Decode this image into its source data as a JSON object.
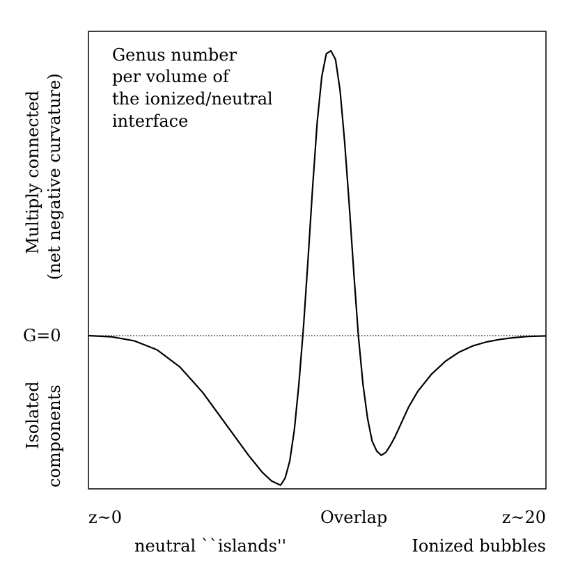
{
  "chart_data": {
    "type": "line",
    "title": "",
    "annotation": [
      "Genus number",
      "per volume of",
      "the ionized/neutral",
      "interface"
    ],
    "y_zero_label": "G=0",
    "y_upper_label": [
      "Multiply connected",
      "(net negative curvature)"
    ],
    "y_lower_label": [
      "Isolated",
      "components"
    ],
    "x_tick_labels": {
      "left": "z~0",
      "center": "Overlap",
      "right": "z~20"
    },
    "x_region_labels": {
      "left": "neutral ``islands''",
      "right": "Ionized bubbles"
    },
    "xlim": [
      0,
      1
    ],
    "ylim": [
      -0.55,
      1.07
    ],
    "zero_line": {
      "style": "dotted"
    },
    "series": [
      {
        "x": [
          0.0,
          0.05,
          0.1,
          0.15,
          0.2,
          0.25,
          0.3,
          0.35,
          0.38,
          0.4,
          0.42,
          0.43,
          0.44,
          0.45,
          0.46,
          0.47,
          0.48,
          0.49,
          0.5,
          0.51,
          0.52,
          0.53,
          0.54,
          0.55,
          0.56,
          0.57,
          0.58,
          0.59,
          0.6,
          0.61,
          0.62,
          0.63,
          0.64,
          0.65,
          0.66,
          0.67,
          0.68,
          0.69,
          0.7,
          0.72,
          0.75,
          0.78,
          0.81,
          0.84,
          0.87,
          0.9,
          0.93,
          0.96,
          1.0
        ],
        "y": [
          0.0,
          -0.004,
          -0.018,
          -0.05,
          -0.11,
          -0.2,
          -0.31,
          -0.42,
          -0.48,
          -0.51,
          -0.525,
          -0.5,
          -0.44,
          -0.33,
          -0.17,
          0.03,
          0.27,
          0.52,
          0.75,
          0.91,
          0.99,
          1.0,
          0.97,
          0.86,
          0.68,
          0.46,
          0.22,
          0.0,
          -0.17,
          -0.29,
          -0.37,
          -0.405,
          -0.42,
          -0.41,
          -0.385,
          -0.355,
          -0.32,
          -0.285,
          -0.25,
          -0.195,
          -0.135,
          -0.09,
          -0.058,
          -0.036,
          -0.022,
          -0.013,
          -0.007,
          -0.003,
          -0.001
        ]
      }
    ]
  }
}
